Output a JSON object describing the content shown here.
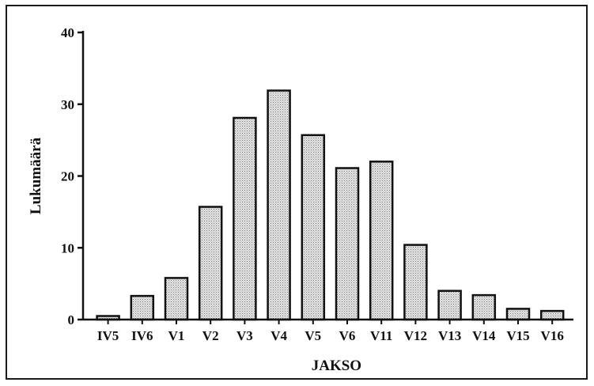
{
  "chart_data": {
    "type": "bar",
    "title": "",
    "xlabel": "JAKSO",
    "ylabel": "Lukumäärä",
    "categories": [
      "IV5",
      "IV6",
      "V1",
      "V2",
      "V3",
      "V4",
      "V5",
      "V6",
      "V11",
      "V12",
      "V13",
      "V14",
      "V15",
      "V16"
    ],
    "values": [
      0.5,
      3.3,
      5.8,
      15.7,
      28.1,
      31.9,
      25.7,
      21.1,
      22.0,
      10.4,
      4.0,
      3.4,
      1.5,
      1.2
    ],
    "ylim": [
      0,
      40
    ],
    "yticks": [
      0,
      10,
      20,
      30,
      40
    ],
    "grid": false,
    "legend": "none",
    "bar_color": "#d4d4d4",
    "bar_edge_color": "#111111"
  }
}
